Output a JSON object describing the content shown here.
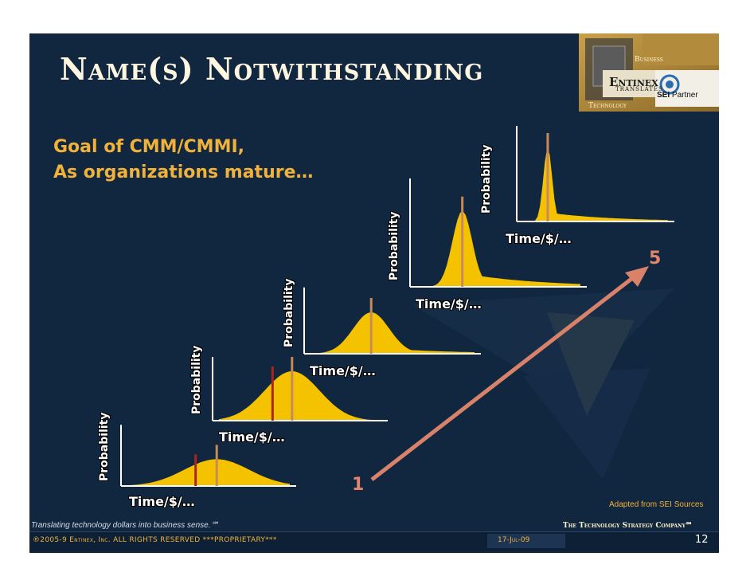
{
  "slide": {
    "title": "Name(s) Notwithstanding",
    "goal_line1": "Goal of CMM/CMMI,",
    "goal_line2": "As organizations mature…",
    "level_start": "1",
    "level_end": "5",
    "credit": "Adapted from SEI Sources"
  },
  "charts": {
    "x_label": "Time/$/…",
    "y_label": "Probability",
    "count": 5
  },
  "header": {
    "word_business": "Business",
    "word_technology": "Technology",
    "logo_entinex": "Entinex",
    "logo_translates": "TRANSLATES",
    "logo_sei_bold": "SEI",
    "logo_sei_rest": " Partner"
  },
  "footer": {
    "tagline": "Translating technology dollars into business sense.℠",
    "company": "The Technology Strategy Company℠",
    "copyright": "®2005-9 Entinex, Inc. ALL RIGHTS RESERVED  ***PROPRIETARY***",
    "date": "17-Jul-09",
    "page_number": "12"
  },
  "colors": {
    "background": "#11263f",
    "curve_fill": "#f5c200",
    "mean_line": "#c98a5a",
    "target_line": "#a8261a",
    "arrow": "#d9826a",
    "goal_text": "#f0b23a"
  }
}
